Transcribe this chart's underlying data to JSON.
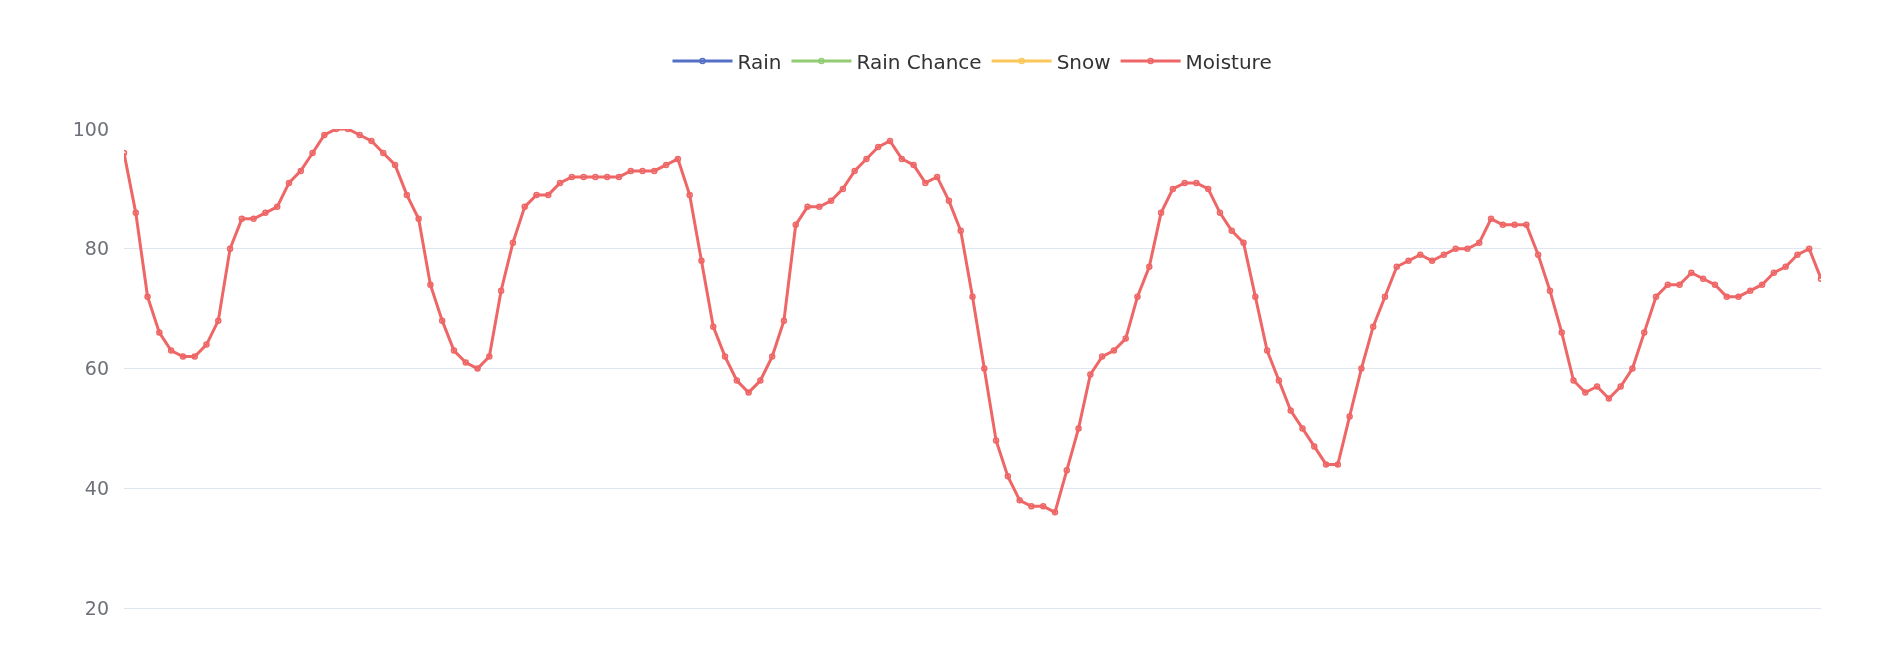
{
  "chart_data": {
    "type": "line",
    "categories": [
      null,
      null,
      null,
      null,
      null,
      null,
      null,
      null,
      null,
      null,
      null,
      null,
      null,
      null,
      null,
      null,
      null,
      null,
      null,
      null,
      null,
      null,
      null,
      null,
      null,
      null,
      null,
      null,
      null,
      null,
      null,
      null,
      null,
      null,
      null,
      null,
      null,
      null,
      null,
      null,
      null,
      null,
      null,
      null,
      null,
      null,
      null,
      null,
      null,
      null,
      null,
      null,
      null,
      null,
      null,
      null,
      null,
      null,
      null,
      null,
      null,
      null,
      null,
      null,
      null,
      null,
      null,
      null,
      null,
      null,
      null,
      null,
      null,
      null,
      null,
      null,
      null,
      null,
      null,
      null,
      null,
      null,
      null,
      null,
      null,
      null,
      null,
      null,
      null,
      null,
      null,
      null,
      null,
      null,
      null,
      null,
      null,
      null,
      null,
      null,
      null,
      null,
      null,
      null,
      null,
      null,
      null,
      null,
      null,
      null,
      null,
      null,
      null,
      null,
      null,
      null,
      null,
      null,
      null,
      null,
      null,
      null,
      null,
      null,
      null,
      null,
      null,
      null,
      null,
      null,
      null,
      null,
      null,
      null,
      null,
      null,
      null,
      null,
      null,
      null,
      null,
      null,
      null,
      null,
      null
    ],
    "series": [
      {
        "name": "Rain",
        "color": "#5470c6",
        "values": [
          null,
          null,
          null,
          null,
          null,
          null,
          null,
          null,
          null,
          null,
          null,
          null,
          null,
          null,
          null,
          null,
          null,
          null,
          null,
          null,
          null,
          null,
          null,
          null,
          null,
          null,
          null,
          null,
          null,
          null,
          null,
          null,
          null,
          null,
          null,
          null,
          null,
          null,
          null,
          null,
          null,
          null,
          null,
          null,
          null,
          null,
          null,
          null,
          null,
          null,
          null,
          null,
          null,
          null,
          null,
          null,
          null,
          null,
          null,
          null,
          null,
          null,
          null,
          null,
          null,
          null,
          null,
          null,
          null,
          null,
          null,
          null,
          null,
          null,
          null,
          null,
          null,
          null,
          null,
          null,
          null,
          null,
          null,
          null,
          null,
          null,
          null,
          null,
          null,
          null,
          null,
          null,
          null,
          null,
          null,
          null,
          null,
          null,
          null,
          null,
          null,
          null,
          null,
          null,
          null,
          null,
          null,
          null,
          null,
          null,
          null,
          null,
          null,
          null,
          null,
          null,
          null,
          null,
          null,
          null,
          null,
          null,
          null,
          null,
          null,
          null,
          null,
          null,
          null,
          null,
          null,
          null,
          null,
          null,
          null,
          null,
          null,
          null,
          null,
          null,
          null,
          null,
          null,
          null,
          null
        ]
      },
      {
        "name": "Rain Chance",
        "color": "#91cc75",
        "values": [
          null,
          null,
          null,
          null,
          null,
          null,
          null,
          null,
          null,
          null,
          null,
          null,
          null,
          null,
          null,
          null,
          null,
          null,
          null,
          null,
          null,
          null,
          null,
          null,
          null,
          null,
          null,
          null,
          null,
          null,
          null,
          null,
          null,
          null,
          null,
          null,
          null,
          null,
          null,
          null,
          null,
          null,
          null,
          null,
          null,
          null,
          null,
          null,
          null,
          null,
          null,
          null,
          null,
          null,
          null,
          null,
          null,
          null,
          null,
          null,
          null,
          null,
          null,
          null,
          null,
          null,
          null,
          null,
          null,
          null,
          null,
          null,
          null,
          null,
          null,
          null,
          null,
          null,
          null,
          null,
          null,
          null,
          null,
          null,
          null,
          null,
          null,
          null,
          null,
          null,
          null,
          null,
          null,
          null,
          null,
          null,
          null,
          null,
          null,
          null,
          null,
          null,
          null,
          null,
          null,
          null,
          null,
          null,
          null,
          null,
          null,
          null,
          null,
          null,
          null,
          null,
          null,
          null,
          null,
          null,
          null,
          null,
          null,
          null,
          null,
          null,
          null,
          null,
          null,
          null,
          null,
          null,
          null,
          null,
          null,
          null,
          null,
          null,
          null,
          null,
          null,
          null,
          null,
          null,
          null
        ]
      },
      {
        "name": "Snow",
        "color": "#fac858",
        "values": [
          null,
          null,
          null,
          null,
          null,
          null,
          null,
          null,
          null,
          null,
          null,
          null,
          null,
          null,
          null,
          null,
          null,
          null,
          null,
          null,
          null,
          null,
          null,
          null,
          null,
          null,
          null,
          null,
          null,
          null,
          null,
          null,
          null,
          null,
          null,
          null,
          null,
          null,
          null,
          null,
          null,
          null,
          null,
          null,
          null,
          null,
          null,
          null,
          null,
          null,
          null,
          null,
          null,
          null,
          null,
          null,
          null,
          null,
          null,
          null,
          null,
          null,
          null,
          null,
          null,
          null,
          null,
          null,
          null,
          null,
          null,
          null,
          null,
          null,
          null,
          null,
          null,
          null,
          null,
          null,
          null,
          null,
          null,
          null,
          null,
          null,
          null,
          null,
          null,
          null,
          null,
          null,
          null,
          null,
          null,
          null,
          null,
          null,
          null,
          null,
          null,
          null,
          null,
          null,
          null,
          null,
          null,
          null,
          null,
          null,
          null,
          null,
          null,
          null,
          null,
          null,
          null,
          null,
          null,
          null,
          null,
          null,
          null,
          null,
          null,
          null,
          null,
          null,
          null,
          null,
          null,
          null,
          null,
          null,
          null,
          null,
          null,
          null,
          null,
          null,
          null,
          null,
          null,
          null,
          null
        ]
      },
      {
        "name": "Moisture",
        "color": "#ee6666",
        "values": [
          96,
          86,
          72,
          66,
          63,
          62,
          62,
          64,
          68,
          80,
          85,
          85,
          86,
          87,
          91,
          93,
          96,
          99,
          100,
          100,
          99,
          98,
          96,
          94,
          89,
          85,
          74,
          68,
          63,
          61,
          60,
          62,
          73,
          81,
          87,
          89,
          89,
          91,
          92,
          92,
          92,
          92,
          92,
          93,
          93,
          93,
          94,
          95,
          89,
          78,
          67,
          62,
          58,
          56,
          58,
          62,
          68,
          84,
          87,
          87,
          88,
          90,
          93,
          95,
          97,
          98,
          95,
          94,
          91,
          92,
          88,
          83,
          72,
          60,
          48,
          42,
          38,
          37,
          37,
          36,
          43,
          50,
          59,
          62,
          63,
          65,
          72,
          77,
          86,
          90,
          91,
          91,
          90,
          86,
          83,
          81,
          72,
          63,
          58,
          53,
          50,
          47,
          44,
          44,
          52,
          60,
          67,
          72,
          77,
          78,
          79,
          78,
          79,
          80,
          80,
          81,
          85,
          84,
          84,
          84,
          79,
          73,
          66,
          58,
          56,
          57,
          55,
          57,
          60,
          66,
          72,
          74,
          74,
          76,
          75,
          74,
          72,
          72,
          73,
          74,
          76,
          77,
          79,
          80,
          75
        ]
      }
    ],
    "ylim": [
      10,
      100
    ],
    "yticks": [
      20,
      40,
      60,
      80,
      100
    ],
    "grid": "y",
    "legend": "top",
    "marker": "circle",
    "line_style": "solid",
    "tick_labels": "y"
  }
}
